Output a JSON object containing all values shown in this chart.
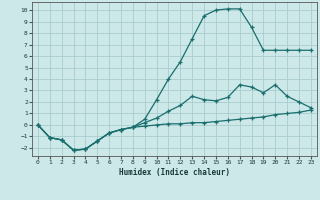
{
  "xlabel": "Humidex (Indice chaleur)",
  "background_color": "#cce8e8",
  "grid_color": "#aacccc",
  "line_color": "#1a6e6e",
  "xlim": [
    -0.5,
    23.5
  ],
  "ylim": [
    -2.7,
    10.7
  ],
  "xticks": [
    0,
    1,
    2,
    3,
    4,
    5,
    6,
    7,
    8,
    9,
    10,
    11,
    12,
    13,
    14,
    15,
    16,
    17,
    18,
    19,
    20,
    21,
    22,
    23
  ],
  "yticks": [
    -2,
    -1,
    0,
    1,
    2,
    3,
    4,
    5,
    6,
    7,
    8,
    9,
    10
  ],
  "line_top_x": [
    0,
    1,
    2,
    3,
    4,
    5,
    6,
    7,
    8,
    9,
    10,
    11,
    12,
    13,
    14,
    15,
    16,
    17,
    18,
    19,
    20,
    21,
    22,
    23
  ],
  "line_top_y": [
    0,
    -1.1,
    -1.3,
    -2.2,
    -2.1,
    -1.4,
    -0.7,
    -0.4,
    -0.2,
    0.5,
    2.2,
    4.0,
    5.5,
    7.5,
    9.5,
    10.0,
    10.1,
    10.1,
    8.5,
    6.5,
    6.5,
    6.5,
    6.5,
    6.5
  ],
  "line_mid_x": [
    0,
    1,
    2,
    3,
    4,
    5,
    6,
    7,
    8,
    9,
    10,
    11,
    12,
    13,
    14,
    15,
    16,
    17,
    18,
    19,
    20,
    21,
    22,
    23
  ],
  "line_mid_y": [
    0,
    -1.1,
    -1.3,
    -2.2,
    -2.1,
    -1.4,
    -0.7,
    -0.4,
    -0.2,
    0.2,
    0.6,
    1.2,
    1.7,
    2.5,
    2.2,
    2.1,
    2.4,
    3.5,
    3.3,
    2.8,
    3.5,
    2.5,
    2.0,
    1.5
  ],
  "line_bot_x": [
    0,
    1,
    2,
    3,
    4,
    5,
    6,
    7,
    8,
    9,
    10,
    11,
    12,
    13,
    14,
    15,
    16,
    17,
    18,
    19,
    20,
    21,
    22,
    23
  ],
  "line_bot_y": [
    0,
    -1.1,
    -1.3,
    -2.2,
    -2.1,
    -1.4,
    -0.7,
    -0.4,
    -0.2,
    -0.1,
    0.0,
    0.1,
    0.1,
    0.2,
    0.2,
    0.3,
    0.4,
    0.5,
    0.6,
    0.7,
    0.9,
    1.0,
    1.1,
    1.3
  ]
}
